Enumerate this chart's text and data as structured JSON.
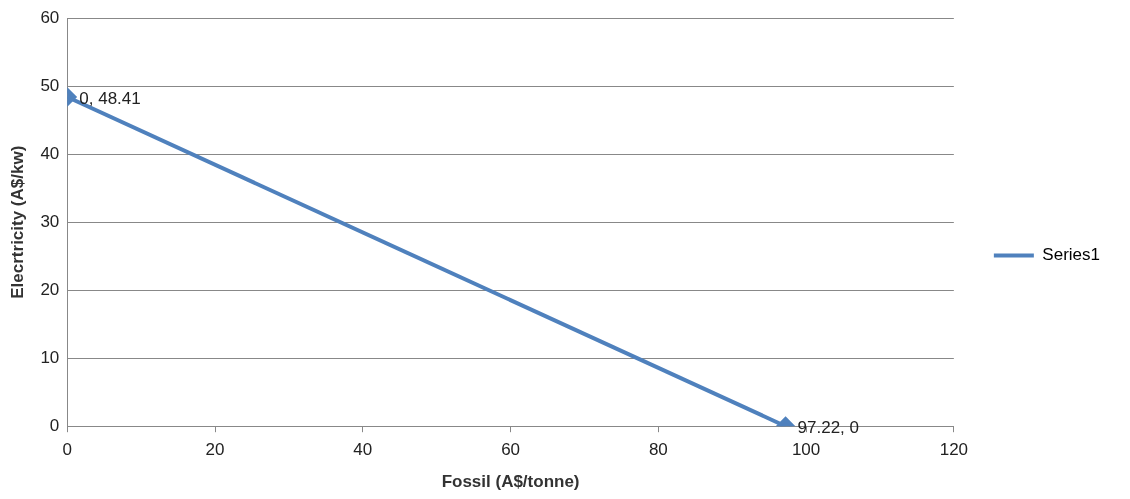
{
  "chart_data": {
    "type": "scatter",
    "xlabel": "Fossil (A$/tonne)",
    "ylabel": "Elecrtricity (A$/kw)",
    "series": [
      {
        "name": "Series1",
        "color": "#4f81bd",
        "type": "line",
        "x": [
          0,
          97.22
        ],
        "values": [
          48.41,
          0
        ],
        "value_labels": [
          "0, 48.41",
          "97.22, 0"
        ]
      }
    ],
    "xlim": [
      0,
      120
    ],
    "xticks": [
      0,
      20,
      40,
      60,
      80,
      100,
      120
    ],
    "ylim": [
      0,
      60
    ],
    "yticks": [
      0,
      10,
      20,
      30,
      40,
      50,
      60
    ],
    "grid": "y",
    "legend": "right",
    "marker": "diamond",
    "line_style": "solid"
  }
}
